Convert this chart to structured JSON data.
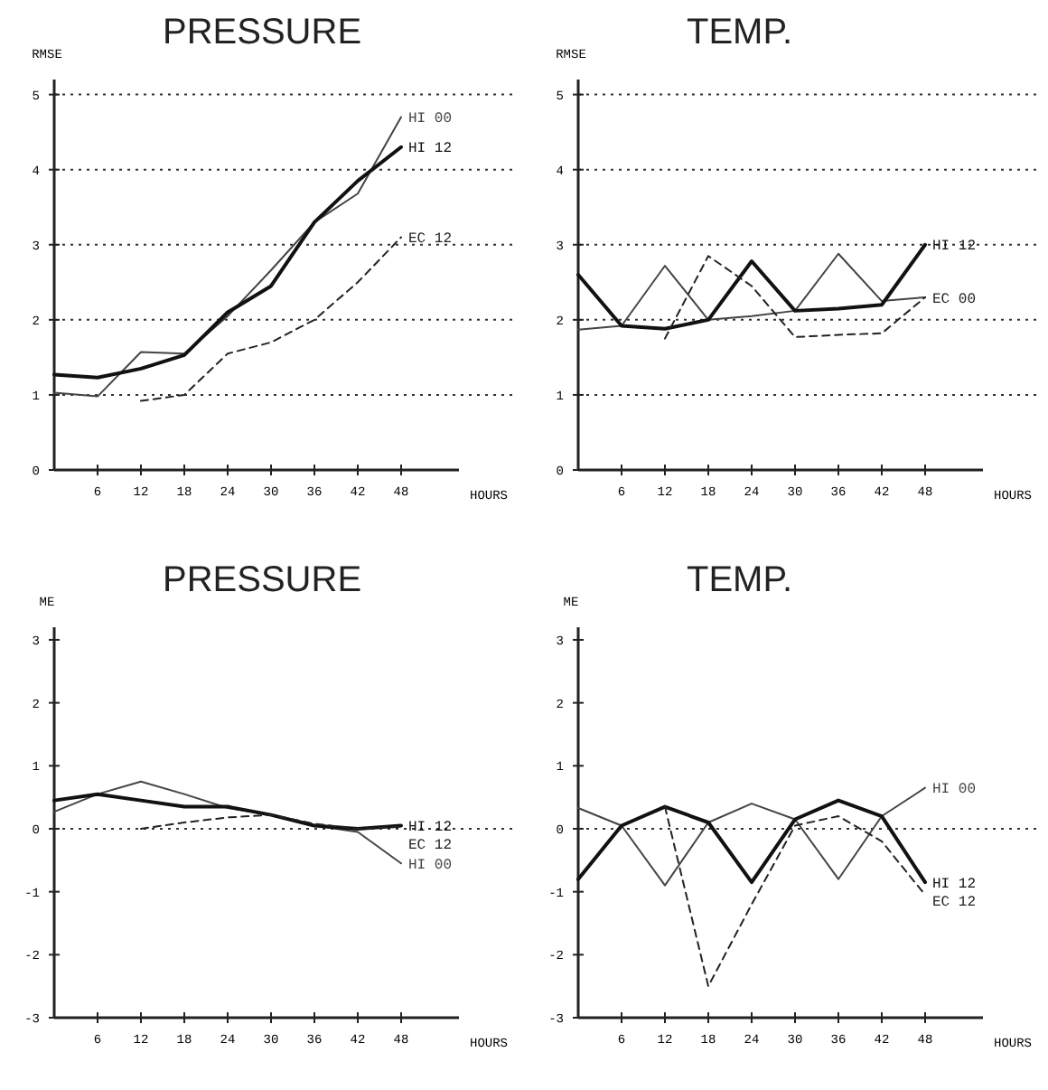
{
  "chart_data": [
    {
      "type": "line",
      "title": "PRESSURE",
      "ylabel": "RMSE",
      "xlabel": "HOURS",
      "x": [
        0,
        6,
        12,
        18,
        24,
        30,
        36,
        42,
        48
      ],
      "xlim": [
        0,
        56
      ],
      "ylim": [
        0,
        5.2
      ],
      "xticks": [
        6,
        12,
        18,
        24,
        30,
        36,
        42,
        48
      ],
      "yticks": [
        0,
        1,
        2,
        3,
        4,
        5
      ],
      "grid": "y",
      "marker": "none",
      "series": [
        {
          "name": "HI 00",
          "color": "#444444",
          "line_style": "solid",
          "values": [
            1.03,
            0.98,
            1.57,
            1.55,
            2.05,
            2.66,
            3.3,
            3.68,
            4.7
          ]
        },
        {
          "name": "HI 12",
          "color": "#111111",
          "line_style": "solid",
          "values": [
            1.27,
            1.23,
            1.35,
            1.53,
            2.1,
            2.45,
            3.3,
            3.85,
            4.3
          ]
        },
        {
          "name": "EC 12",
          "color": "#222222",
          "line_style": "dashed",
          "values": [
            null,
            null,
            0.92,
            1.0,
            1.55,
            1.7,
            2.0,
            2.5,
            3.1
          ]
        }
      ]
    },
    {
      "type": "line",
      "title": "TEMP.",
      "ylabel": "RMSE",
      "xlabel": "HOURS",
      "x": [
        0,
        6,
        12,
        18,
        24,
        30,
        36,
        42,
        48
      ],
      "xlim": [
        0,
        56
      ],
      "ylim": [
        0,
        5.2
      ],
      "xticks": [
        6,
        12,
        18,
        24,
        30,
        36,
        42,
        48
      ],
      "yticks": [
        0,
        1,
        2,
        3,
        4,
        5
      ],
      "grid": "y",
      "marker": "none",
      "series": [
        {
          "color": "#444444",
          "line_style": "solid",
          "values": [
            1.87,
            1.92,
            2.72,
            2.0,
            2.05,
            2.12,
            2.88,
            2.25,
            2.3
          ]
        },
        {
          "name": "HI 12",
          "color": "#111111",
          "line_style": "solid",
          "values": [
            2.6,
            1.92,
            1.88,
            2.0,
            2.78,
            2.12,
            2.15,
            2.2,
            3.0
          ]
        },
        {
          "name": "EC 00",
          "color": "#222222",
          "line_style": "dashed",
          "values": [
            null,
            null,
            1.75,
            2.85,
            2.45,
            1.77,
            1.8,
            1.82,
            2.3
          ]
        }
      ]
    },
    {
      "type": "line",
      "title": "PRESSURE",
      "ylabel": "ME",
      "xlabel": "HOURS",
      "x": [
        0,
        6,
        12,
        18,
        24,
        30,
        36,
        42,
        48
      ],
      "xlim": [
        0,
        56
      ],
      "ylim": [
        -3,
        3.2
      ],
      "xticks": [
        6,
        12,
        18,
        24,
        30,
        36,
        42,
        48
      ],
      "yticks": [
        -3,
        -2,
        -1,
        0,
        1,
        2,
        3
      ],
      "grid": false,
      "marker": "none",
      "ref_lines": [
        {
          "axis": "y",
          "value": 0,
          "line_style": "dotted"
        }
      ],
      "series": [
        {
          "name": "HI 00",
          "color": "#444444",
          "line_style": "solid",
          "values": [
            0.27,
            0.55,
            0.75,
            0.55,
            0.33,
            0.22,
            0.05,
            -0.05,
            -0.55
          ]
        },
        {
          "name": "HI 12",
          "color": "#111111",
          "line_style": "solid",
          "values": [
            0.45,
            0.55,
            0.45,
            0.35,
            0.35,
            0.22,
            0.05,
            0.0,
            0.05
          ]
        },
        {
          "name": "EC 12",
          "color": "#222222",
          "line_style": "dashed",
          "values": [
            null,
            null,
            0.0,
            0.1,
            0.18,
            0.22,
            0.08,
            0.0,
            0.03
          ]
        }
      ]
    },
    {
      "type": "line",
      "title": "TEMP.",
      "ylabel": "ME",
      "xlabel": "HOURS",
      "x": [
        0,
        6,
        12,
        18,
        24,
        30,
        36,
        42,
        48
      ],
      "xlim": [
        0,
        56
      ],
      "ylim": [
        -3,
        3.2
      ],
      "xticks": [
        6,
        12,
        18,
        24,
        30,
        36,
        42,
        48
      ],
      "yticks": [
        -3,
        -2,
        -1,
        0,
        1,
        2,
        3
      ],
      "grid": false,
      "marker": "none",
      "ref_lines": [
        {
          "axis": "y",
          "value": 0,
          "line_style": "dotted"
        }
      ],
      "series": [
        {
          "name": "HI 00",
          "color": "#444444",
          "line_style": "solid",
          "values": [
            0.33,
            0.05,
            -0.9,
            0.1,
            0.4,
            0.15,
            -0.8,
            0.2,
            0.65
          ]
        },
        {
          "name": "HI 12",
          "color": "#111111",
          "line_style": "solid",
          "values": [
            -0.8,
            0.05,
            0.35,
            0.1,
            -0.85,
            0.15,
            0.45,
            0.2,
            -0.85
          ]
        },
        {
          "name": "EC 12",
          "color": "#222222",
          "line_style": "dashed",
          "values": [
            null,
            null,
            0.35,
            -2.5,
            -1.2,
            0.05,
            0.2,
            -0.2,
            -1.05
          ]
        }
      ]
    }
  ]
}
